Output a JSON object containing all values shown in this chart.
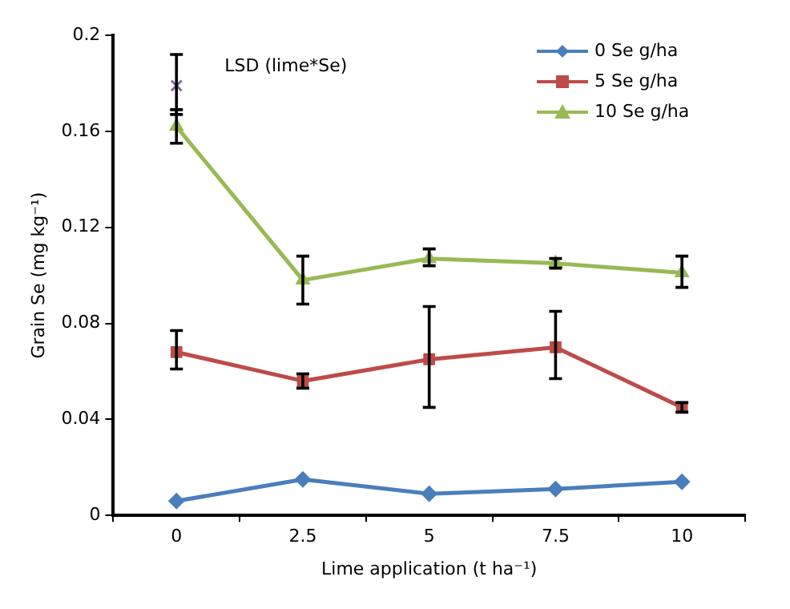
{
  "chart_data": {
    "type": "line",
    "xlabel": "Lime application (t ha⁻¹)",
    "ylabel": "Grain Se (mg kg⁻¹)",
    "categories": [
      "0",
      "2.5",
      "5",
      "7.5",
      "10"
    ],
    "series": [
      {
        "name": "0 Se g/ha",
        "color": "#4a7ebb",
        "marker": "diamond",
        "values": [
          0.006,
          0.015,
          0.009,
          0.011,
          0.014
        ]
      },
      {
        "name": "5 Se g/ha",
        "color": "#be4b48",
        "marker": "square",
        "values": [
          0.068,
          0.056,
          0.065,
          0.07,
          0.045
        ],
        "errors": [
          [
            0.061,
            0.077
          ],
          [
            0.053,
            0.059
          ],
          [
            0.045,
            0.087
          ],
          [
            0.057,
            0.085
          ],
          [
            0.043,
            0.047
          ]
        ]
      },
      {
        "name": "10 Se g/ha",
        "color": "#98b954",
        "marker": "triangle",
        "values": [
          0.162,
          0.098,
          0.107,
          0.105,
          0.101
        ],
        "errors": [
          [
            0.155,
            0.169
          ],
          [
            0.088,
            0.108
          ],
          [
            0.104,
            0.111
          ],
          [
            0.103,
            0.107
          ],
          [
            0.095,
            0.108
          ]
        ]
      },
      {
        "type": "scatter",
        "name": "LSD (lime*Se)",
        "color": "#7f6a9f",
        "marker": "cross",
        "values": [
          0.179,
          null,
          null,
          null,
          null
        ],
        "errors": [
          [
            0.167,
            0.192
          ],
          null,
          null,
          null,
          null
        ]
      }
    ],
    "ylim": [
      0,
      0.2
    ],
    "yticks": [
      0,
      0.04,
      0.08,
      0.12,
      0.16,
      0.2
    ],
    "grid": false,
    "legend": "top right"
  }
}
